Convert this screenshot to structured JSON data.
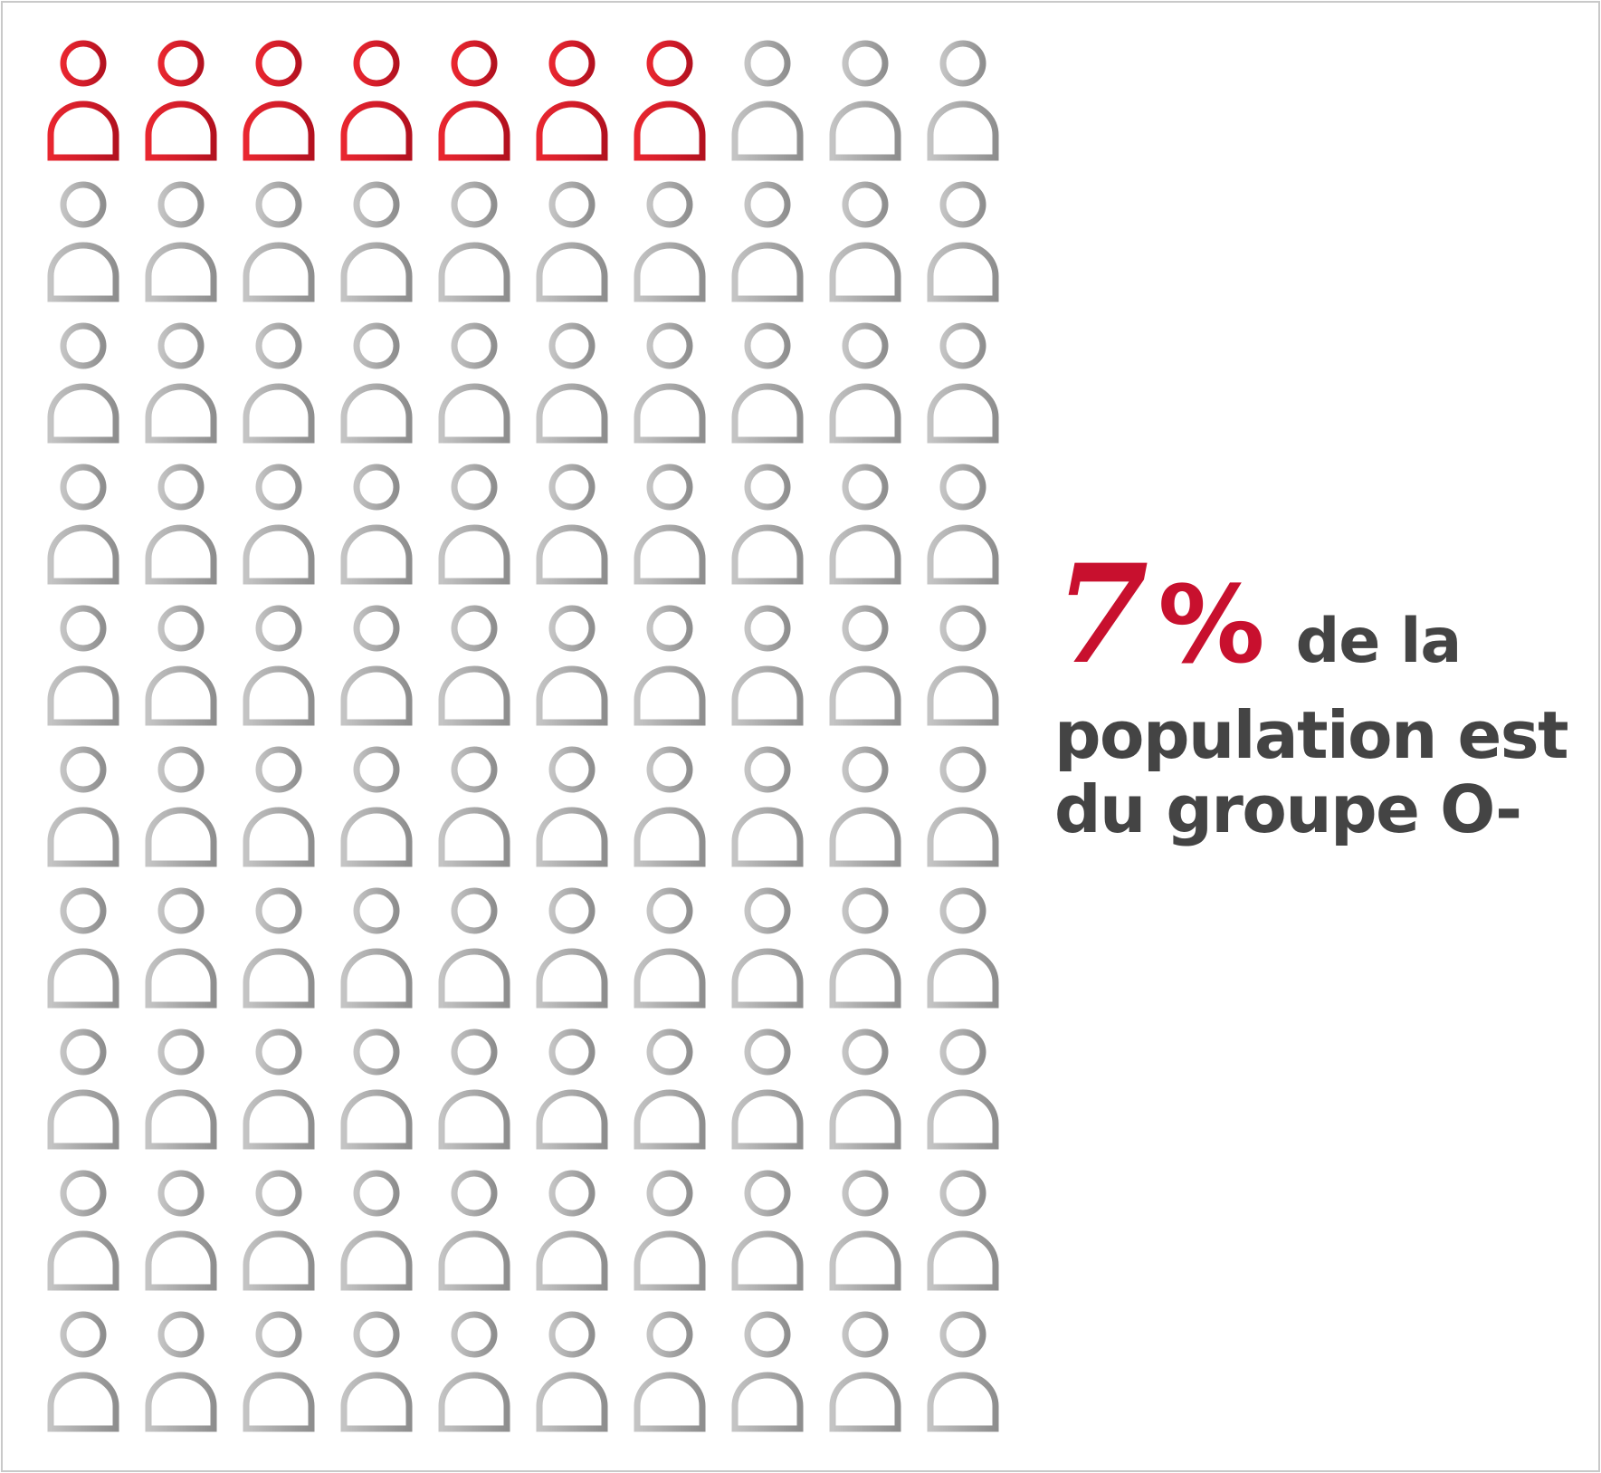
{
  "chart_data": {
    "type": "pictogram",
    "total": 100,
    "highlighted": 7,
    "rows": 10,
    "columns": 10,
    "units": "%"
  },
  "headline": {
    "value": "7",
    "percent_sign": "%",
    "line1_rest": "de la",
    "line2": "population est",
    "line3": "du groupe O-"
  },
  "colors": {
    "highlight": "#d4212f",
    "highlight_dark": "#a3101e",
    "base": "#9a9a9a",
    "base_light": "#c2c2c2",
    "text": "#444444",
    "frame": "#c9c9c9"
  },
  "icons": {
    "person": "person-outline-icon"
  }
}
